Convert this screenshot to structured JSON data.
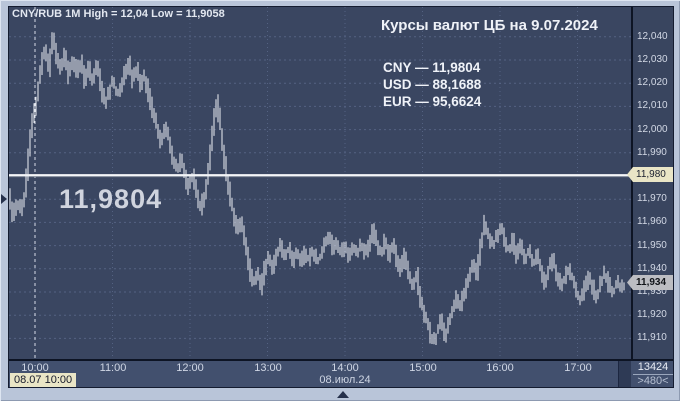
{
  "chart": {
    "title": "CNY/RUB 1M High = 12,04 Low = 11,9058",
    "overlay": {
      "heading": "Курсы валют ЦБ на 9.07.2024",
      "rates": [
        "CNY — 11,9804",
        "USD — 88,1688",
        "EUR — 95,6624"
      ]
    },
    "big_price": "11,9804"
  },
  "chart_data": {
    "type": "bar",
    "title": "CNY/RUB 1M High = 12,04 Low = 11,9058",
    "symbol": "CNY/RUB",
    "interval": "1M",
    "high": 12.04,
    "low": 11.9058,
    "last": 11.934,
    "ylim": [
      11.901,
      12.053
    ],
    "grid": "dotted",
    "cb_line": {
      "price": 11.9804,
      "axis_label": "11,980"
    },
    "last_tag": {
      "price": 11.934,
      "axis_label": "11,934"
    },
    "x_ticks": [
      {
        "label": "10:00",
        "hour": 10
      },
      {
        "label": "11:00",
        "hour": 11
      },
      {
        "label": "12:00",
        "hour": 12
      },
      {
        "label": "13:00",
        "hour": 13
      },
      {
        "label": "14:00",
        "hour": 14
      },
      {
        "label": "15:00",
        "hour": 15
      },
      {
        "label": "16:00",
        "hour": 16
      },
      {
        "label": "17:00",
        "hour": 17
      }
    ],
    "y_ticks": [
      {
        "label": "12,040",
        "price": 12.04
      },
      {
        "label": "12,030",
        "price": 12.03
      },
      {
        "label": "12,020",
        "price": 12.02
      },
      {
        "label": "12,010",
        "price": 12.01
      },
      {
        "label": "12,000",
        "price": 12.0
      },
      {
        "label": "11,990",
        "price": 11.99
      },
      {
        "label": "11,980",
        "price": 11.98
      },
      {
        "label": "11,970",
        "price": 11.97
      },
      {
        "label": "11,960",
        "price": 11.96
      },
      {
        "label": "11,950",
        "price": 11.95
      },
      {
        "label": "11,940",
        "price": 11.94
      },
      {
        "label": "11,930",
        "price": 11.93
      },
      {
        "label": "11,920",
        "price": 11.92
      },
      {
        "label": "11,910",
        "price": 11.91
      }
    ],
    "prices": [
      11.974,
      11.963,
      11.969,
      11.966,
      11.972,
      11.99,
      12.004,
      12.014,
      12.026,
      12.035,
      12.026,
      12.04,
      12.031,
      12.026,
      12.032,
      12.023,
      12.029,
      12.025,
      12.029,
      12.02,
      12.027,
      12.021,
      12.028,
      12.019,
      12.011,
      12.016,
      12.021,
      12.015,
      12.019,
      12.025,
      12.029,
      12.021,
      12.026,
      12.019,
      12.023,
      12.015,
      12.008,
      12.001,
      11.995,
      12.002,
      11.996,
      11.988,
      11.982,
      11.988,
      11.98,
      11.975,
      11.981,
      11.972,
      11.966,
      11.972,
      11.985,
      12.0,
      12.012,
      12.0,
      11.986,
      11.975,
      11.965,
      11.956,
      11.96,
      11.952,
      11.942,
      11.933,
      11.938,
      11.932,
      11.94,
      11.946,
      11.94,
      11.946,
      11.951,
      11.945,
      11.949,
      11.943,
      11.947,
      11.943,
      11.947,
      11.944,
      11.948,
      11.944,
      11.946,
      11.95,
      11.955,
      11.948,
      11.951,
      11.946,
      11.95,
      11.946,
      11.95,
      11.947,
      11.95,
      11.946,
      11.949,
      11.958,
      11.95,
      11.946,
      11.952,
      11.946,
      11.95,
      11.944,
      11.94,
      11.946,
      11.938,
      11.932,
      11.938,
      11.926,
      11.92,
      11.914,
      11.908,
      11.912,
      11.918,
      11.91,
      11.916,
      11.922,
      11.928,
      11.924,
      11.93,
      11.936,
      11.942,
      11.938,
      11.95,
      11.96,
      11.954,
      11.95,
      11.954,
      11.958,
      11.952,
      11.948,
      11.952,
      11.945,
      11.95,
      11.944,
      11.948,
      11.942,
      11.946,
      11.94,
      11.934,
      11.94,
      11.944,
      11.938,
      11.932,
      11.936,
      11.94,
      11.936,
      11.93,
      11.926,
      11.932,
      11.936,
      11.932,
      11.928,
      11.934,
      11.938,
      11.933,
      11.929,
      11.934,
      11.932,
      11.934
    ],
    "colors": {
      "background": "#3a4661",
      "bars": "#eef0f5",
      "grid": "#6b7a9d",
      "cb_line": "#f6f7f9",
      "cb_tag": "#e9e5c6",
      "last_tag": "#bcbdc2",
      "session_line": "#e8ecf5"
    }
  },
  "axis_bottom": {
    "date_label": "08.июл.24",
    "date_hour": 14,
    "session_label": "08.07 10:00",
    "corner_top": "13424",
    "corner_bottom": ">480<"
  }
}
